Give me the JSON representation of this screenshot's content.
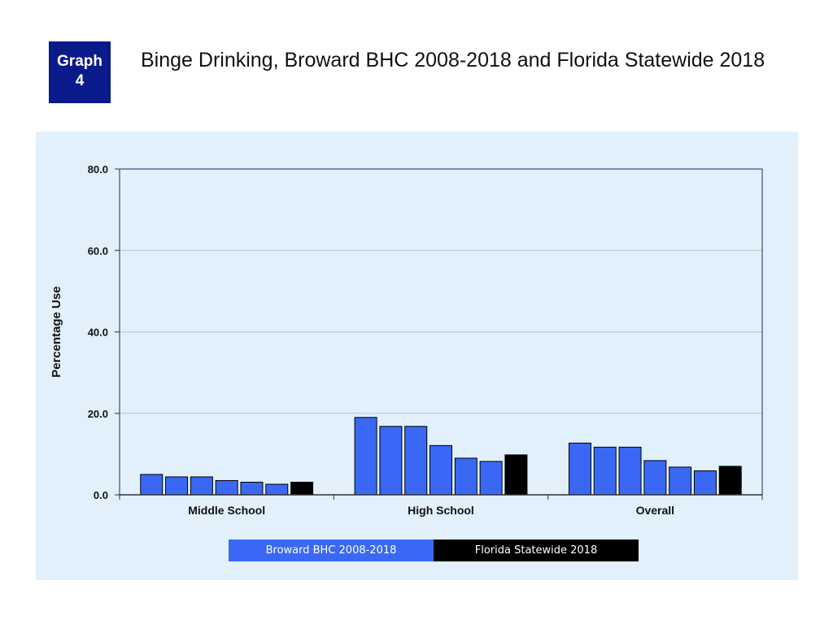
{
  "header": {
    "badge_line1": "Graph",
    "badge_line2": "4",
    "title": "Binge Drinking, Broward BHC 2008-2018 and Florida Statewide 2018"
  },
  "colors": {
    "broward": "#3a68f5",
    "statewide": "#000000",
    "panel": "#e1f0fb",
    "badge": "#0a1a8a"
  },
  "chart_data": {
    "type": "bar",
    "title": "",
    "xlabel": "",
    "ylabel": "Percentage Use",
    "ylim": [
      0,
      80
    ],
    "yticks": [
      "0.0",
      "20.0",
      "40.0",
      "60.0",
      "80.0"
    ],
    "grid": true,
    "categories": [
      "Middle School",
      "High School",
      "Overall"
    ],
    "series": [
      {
        "name": "",
        "group": "Broward BHC 2008-2018",
        "values": [
          5.0,
          19.0,
          12.7
        ]
      },
      {
        "name": "",
        "group": "Broward BHC 2008-2018",
        "values": [
          4.4,
          16.8,
          11.7
        ]
      },
      {
        "name": "",
        "group": "Broward BHC 2008-2018",
        "values": [
          4.4,
          16.8,
          11.7
        ]
      },
      {
        "name": "",
        "group": "Broward BHC 2008-2018",
        "values": [
          3.5,
          12.1,
          8.4
        ]
      },
      {
        "name": "",
        "group": "Broward BHC 2008-2018",
        "values": [
          3.1,
          9.0,
          6.8
        ]
      },
      {
        "name": "",
        "group": "Broward BHC 2008-2018",
        "values": [
          2.6,
          8.2,
          5.9
        ]
      },
      {
        "name": "",
        "group": "Florida Statewide 2018",
        "values": [
          3.1,
          9.8,
          7.0
        ]
      }
    ],
    "legend": {
      "placement": "bottom",
      "entries": [
        "Broward BHC 2008-2018",
        "Florida Statewide 2018"
      ]
    }
  }
}
